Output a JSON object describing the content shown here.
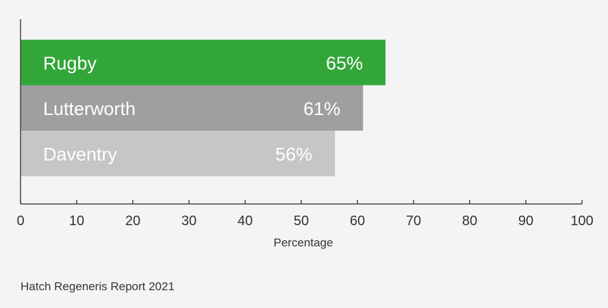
{
  "chart_data": {
    "type": "bar",
    "orientation": "horizontal",
    "categories": [
      "Rugby",
      "Lutterworth",
      "Daventry"
    ],
    "values": [
      65,
      61,
      56
    ],
    "value_labels": [
      "65%",
      "61%",
      "56%"
    ],
    "bar_colors": [
      "#33a63a",
      "#a09f9e",
      "#c6c6c6"
    ],
    "xlabel": "Percentage",
    "xlim": [
      0,
      100
    ],
    "xticks": [
      0,
      10,
      20,
      30,
      40,
      50,
      60,
      70,
      80,
      90,
      100
    ],
    "grid": false,
    "legend": "none"
  },
  "source": "Hatch Regeneris Report 2021",
  "colors": {
    "background": "#f4f4f4",
    "axis": "#444444",
    "text": "#333333",
    "label": "#ffffff"
  }
}
